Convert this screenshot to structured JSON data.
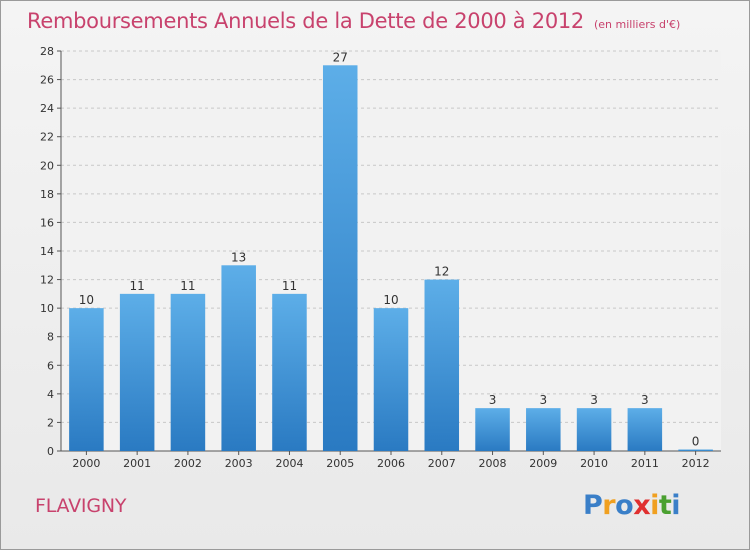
{
  "chart_data": {
    "type": "bar",
    "title": "Remboursements Annuels de la Dette de 2000 à 2012",
    "unit_note": "(en milliers d'€)",
    "categories": [
      "2000",
      "2001",
      "2002",
      "2003",
      "2004",
      "2005",
      "2006",
      "2007",
      "2008",
      "2009",
      "2010",
      "2011",
      "2012"
    ],
    "values": [
      10,
      11,
      11,
      13,
      11,
      27,
      10,
      12,
      3,
      3,
      3,
      3,
      0
    ],
    "y_ticks": [
      0,
      2,
      4,
      6,
      8,
      10,
      12,
      14,
      16,
      18,
      20,
      22,
      24,
      26,
      28
    ],
    "ylim": [
      0,
      28
    ],
    "xlabel": "",
    "ylabel": "",
    "grid": true,
    "bar_color": "#3a8fd6"
  },
  "commune": "FLAVIGNY",
  "logo": {
    "letters": [
      "P",
      "r",
      "o",
      "x",
      "i",
      "t",
      "i"
    ],
    "colors": [
      "#3a7fc8",
      "#f0a020",
      "#3a7fc8",
      "#e03030",
      "#f0a020",
      "#4aa030",
      "#3a7fc8"
    ]
  }
}
